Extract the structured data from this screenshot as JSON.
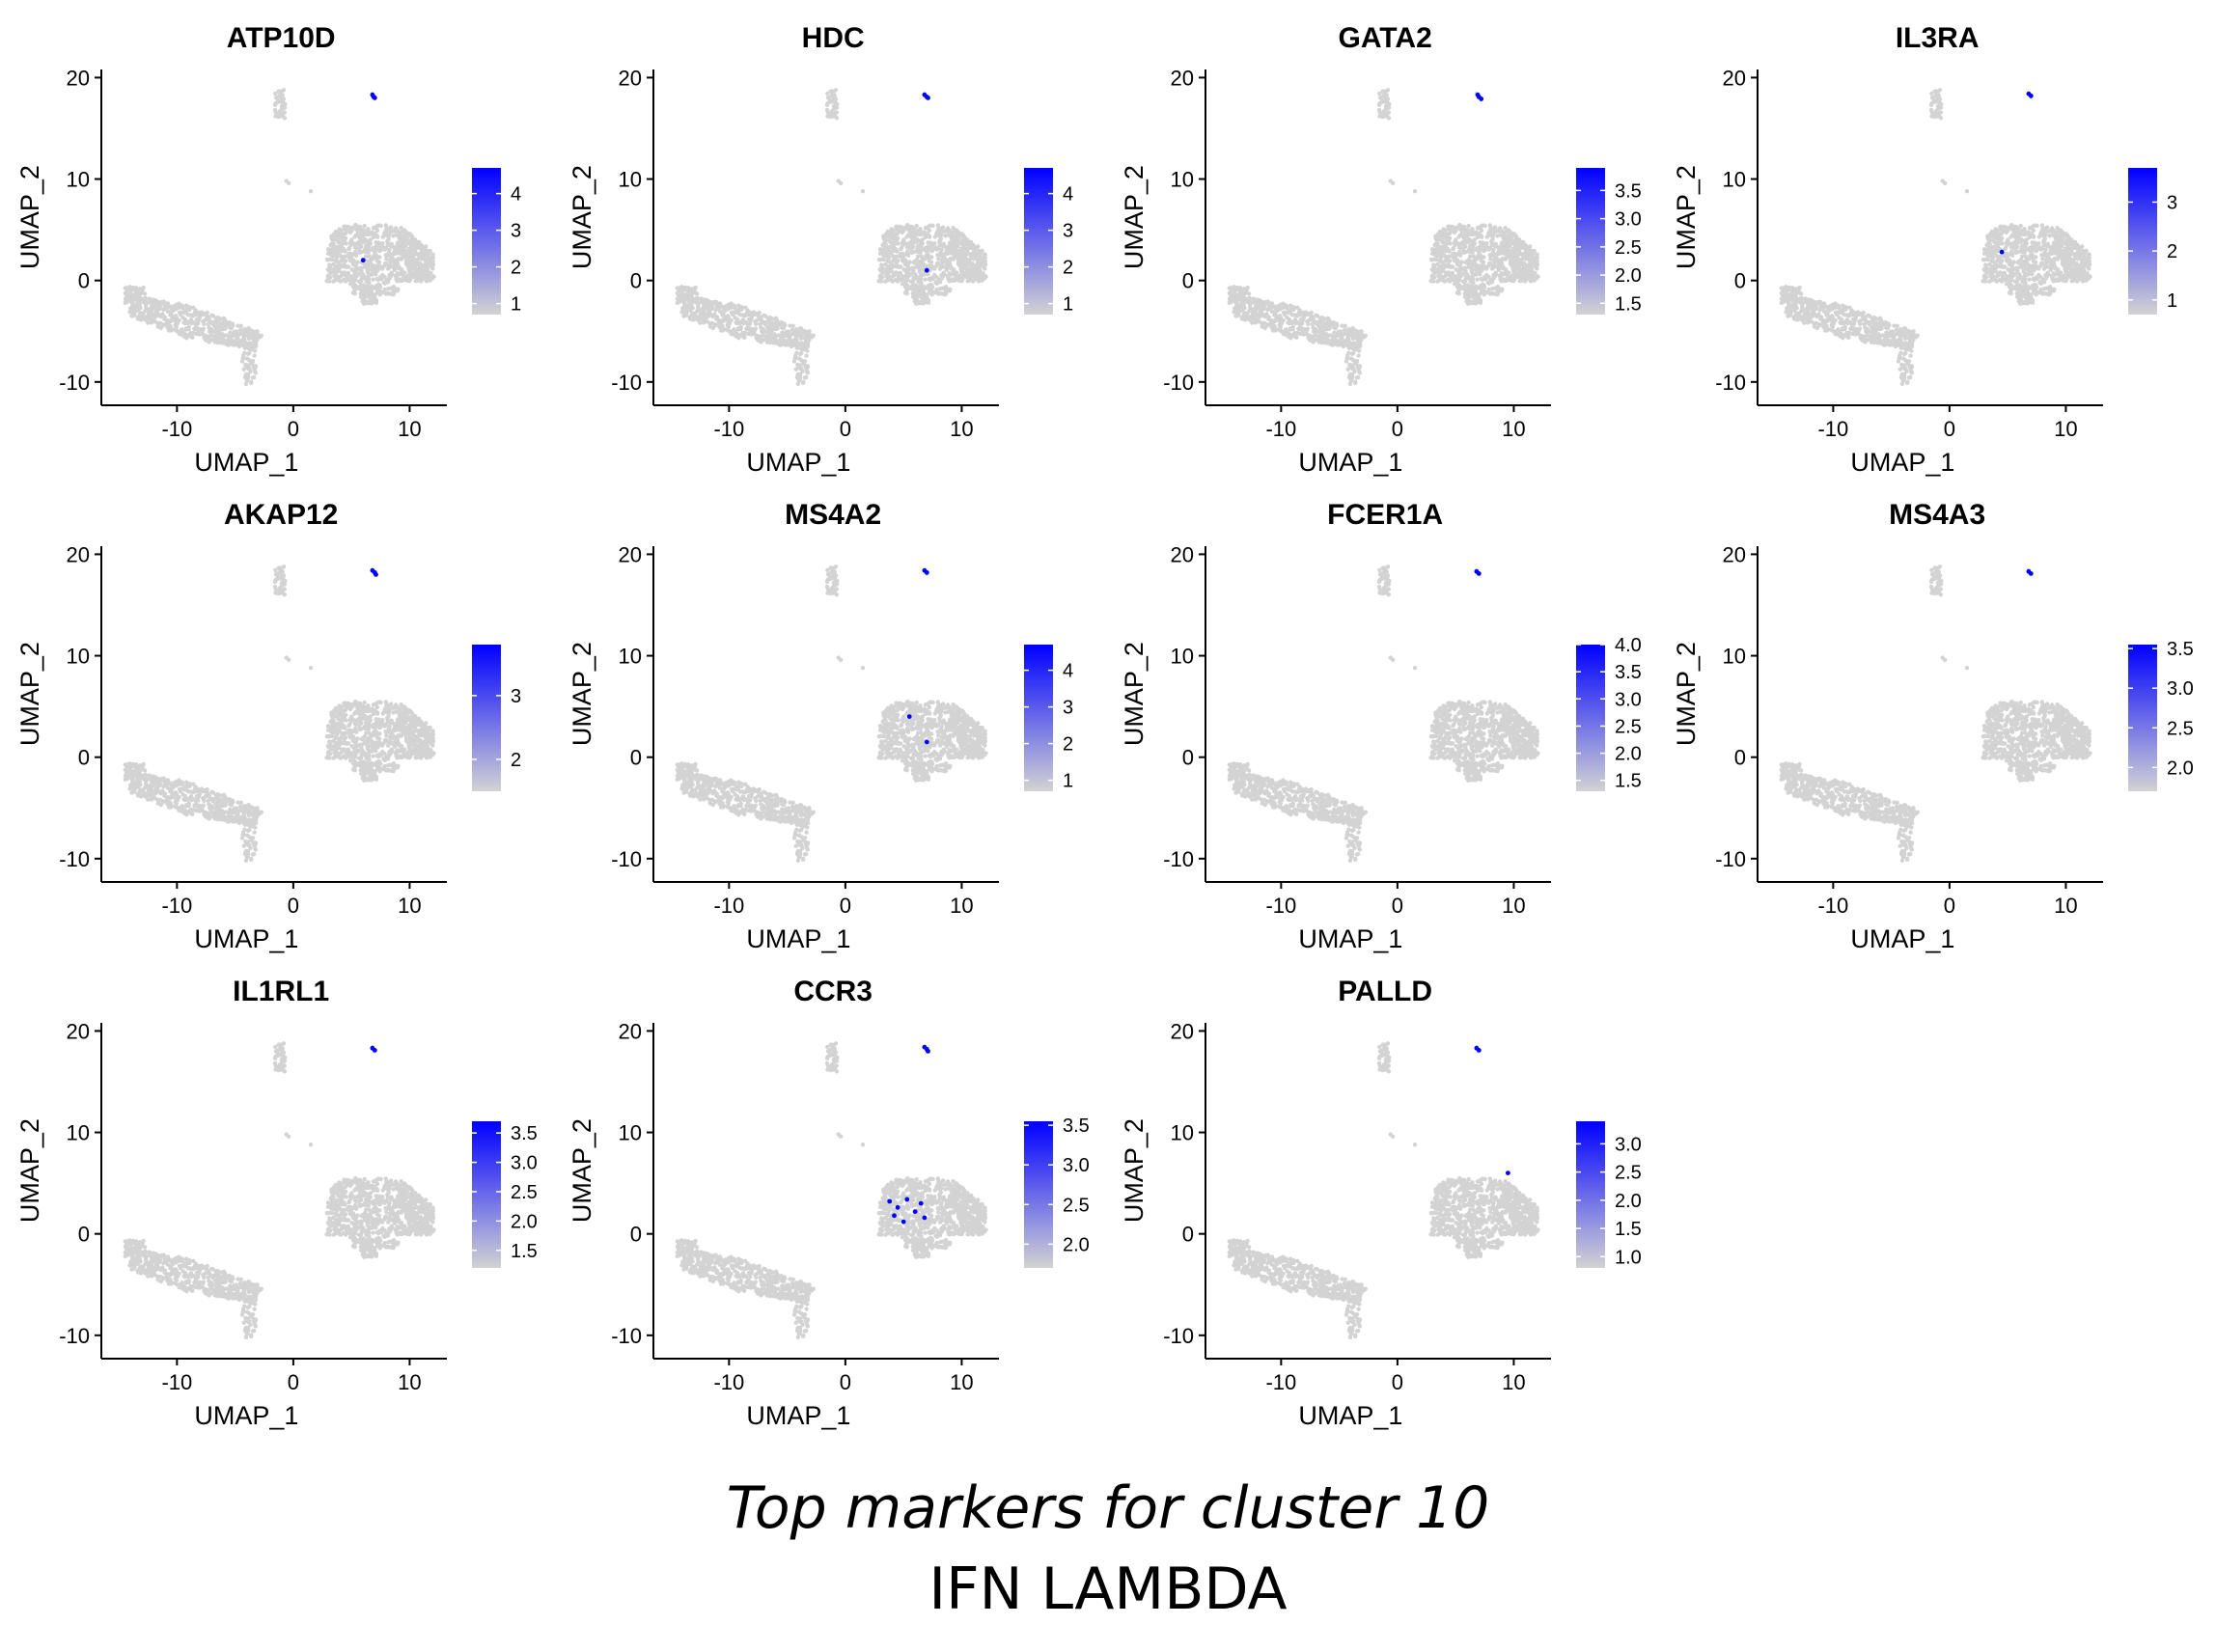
{
  "caption": {
    "line1": "Top markers for cluster 10",
    "line2": "IFN LAMBDA"
  },
  "colors": {
    "low": "#d3d3d3",
    "high": "#0000ff",
    "cells": "#d3d3d3"
  },
  "chart_data": [
    {
      "type": "scatter",
      "title": "ATP10D",
      "xlabel": "UMAP_1",
      "ylabel": "UMAP_2",
      "xticks": [
        "-10",
        "0",
        "10"
      ],
      "yticks": [
        "-10",
        "0",
        "10",
        "20"
      ],
      "xlim": [
        -16.5,
        13.2
      ],
      "ylim": [
        -12.3,
        20.8
      ],
      "legend": {
        "position": "right",
        "ticks": [
          "1",
          "2",
          "3",
          "4"
        ],
        "tick_values": [
          1,
          2,
          3,
          4
        ],
        "range": [
          0.7,
          4.7
        ]
      },
      "highlight_points": [
        [
          6.8,
          18.3
        ],
        [
          6.9,
          18.1
        ],
        [
          7.0,
          18.0
        ],
        [
          6.0,
          2.0
        ]
      ]
    },
    {
      "type": "scatter",
      "title": "HDC",
      "xlabel": "UMAP_1",
      "ylabel": "UMAP_2",
      "xticks": [
        "-10",
        "0",
        "10"
      ],
      "yticks": [
        "-10",
        "0",
        "10",
        "20"
      ],
      "xlim": [
        -16.5,
        13.2
      ],
      "ylim": [
        -12.3,
        20.8
      ],
      "legend": {
        "position": "right",
        "ticks": [
          "1",
          "2",
          "3",
          "4"
        ],
        "tick_values": [
          1,
          2,
          3,
          4
        ],
        "range": [
          0.7,
          4.7
        ]
      },
      "highlight_points": [
        [
          6.8,
          18.3
        ],
        [
          7.0,
          18.1
        ],
        [
          7.1,
          18.0
        ],
        [
          7.0,
          1.0
        ]
      ]
    },
    {
      "type": "scatter",
      "title": "GATA2",
      "xlabel": "UMAP_1",
      "ylabel": "UMAP_2",
      "xticks": [
        "-10",
        "0",
        "10"
      ],
      "yticks": [
        "-10",
        "0",
        "10",
        "20"
      ],
      "xlim": [
        -16.5,
        13.2
      ],
      "ylim": [
        -12.3,
        20.8
      ],
      "legend": {
        "position": "right",
        "ticks": [
          "1.5",
          "2.0",
          "2.5",
          "3.0",
          "3.5"
        ],
        "tick_values": [
          1.5,
          2.0,
          2.5,
          3.0,
          3.5
        ],
        "range": [
          1.3,
          3.9
        ]
      },
      "highlight_points": [
        [
          6.9,
          18.3
        ],
        [
          7.0,
          18.1
        ],
        [
          7.2,
          17.9
        ]
      ]
    },
    {
      "type": "scatter",
      "title": "IL3RA",
      "xlabel": "UMAP_1",
      "ylabel": "UMAP_2",
      "xticks": [
        "-10",
        "0",
        "10"
      ],
      "yticks": [
        "-10",
        "0",
        "10",
        "20"
      ],
      "xlim": [
        -16.5,
        13.2
      ],
      "ylim": [
        -12.3,
        20.8
      ],
      "legend": {
        "position": "right",
        "ticks": [
          "1",
          "2",
          "3"
        ],
        "tick_values": [
          1,
          2,
          3
        ],
        "range": [
          0.7,
          3.7
        ]
      },
      "highlight_points": [
        [
          6.8,
          18.4
        ],
        [
          7.0,
          18.2
        ],
        [
          4.5,
          2.8
        ]
      ]
    },
    {
      "type": "scatter",
      "title": "AKAP12",
      "xlabel": "UMAP_1",
      "ylabel": "UMAP_2",
      "xticks": [
        "-10",
        "0",
        "10"
      ],
      "yticks": [
        "-10",
        "0",
        "10",
        "20"
      ],
      "xlim": [
        -16.5,
        13.2
      ],
      "ylim": [
        -12.3,
        20.8
      ],
      "legend": {
        "position": "right",
        "ticks": [
          "2",
          "3"
        ],
        "tick_values": [
          2,
          3
        ],
        "range": [
          1.5,
          3.8
        ]
      },
      "highlight_points": [
        [
          6.8,
          18.4
        ],
        [
          7.0,
          18.2
        ],
        [
          7.1,
          18.0
        ]
      ]
    },
    {
      "type": "scatter",
      "title": "MS4A2",
      "xlabel": "UMAP_1",
      "ylabel": "UMAP_2",
      "xticks": [
        "-10",
        "0",
        "10"
      ],
      "yticks": [
        "-10",
        "0",
        "10",
        "20"
      ],
      "xlim": [
        -16.5,
        13.2
      ],
      "ylim": [
        -12.3,
        20.8
      ],
      "legend": {
        "position": "right",
        "ticks": [
          "1",
          "2",
          "3",
          "4"
        ],
        "tick_values": [
          1,
          2,
          3,
          4
        ],
        "range": [
          0.7,
          4.7
        ]
      },
      "highlight_points": [
        [
          6.8,
          18.4
        ],
        [
          7.0,
          18.2
        ],
        [
          5.5,
          4.0
        ],
        [
          7.0,
          1.5
        ]
      ]
    },
    {
      "type": "scatter",
      "title": "FCER1A",
      "xlabel": "UMAP_1",
      "ylabel": "UMAP_2",
      "xticks": [
        "-10",
        "0",
        "10"
      ],
      "yticks": [
        "-10",
        "0",
        "10",
        "20"
      ],
      "xlim": [
        -16.5,
        13.2
      ],
      "ylim": [
        -12.3,
        20.8
      ],
      "legend": {
        "position": "right",
        "ticks": [
          "1.5",
          "2.0",
          "2.5",
          "3.0",
          "3.5",
          "4.0"
        ],
        "tick_values": [
          1.5,
          2.0,
          2.5,
          3.0,
          3.5,
          4.0
        ],
        "range": [
          1.3,
          4.0
        ]
      },
      "highlight_points": [
        [
          6.8,
          18.3
        ],
        [
          7.0,
          18.1
        ]
      ]
    },
    {
      "type": "scatter",
      "title": "MS4A3",
      "xlabel": "UMAP_1",
      "ylabel": "UMAP_2",
      "xticks": [
        "-10",
        "0",
        "10"
      ],
      "yticks": [
        "-10",
        "0",
        "10",
        "20"
      ],
      "xlim": [
        -16.5,
        13.2
      ],
      "ylim": [
        -12.3,
        20.8
      ],
      "legend": {
        "position": "right",
        "ticks": [
          "2.0",
          "2.5",
          "3.0",
          "3.5"
        ],
        "tick_values": [
          2.0,
          2.5,
          3.0,
          3.5
        ],
        "range": [
          1.7,
          3.55
        ]
      },
      "highlight_points": [
        [
          6.8,
          18.3
        ],
        [
          7.0,
          18.1
        ]
      ]
    },
    {
      "type": "scatter",
      "title": "IL1RL1",
      "xlabel": "UMAP_1",
      "ylabel": "UMAP_2",
      "xticks": [
        "-10",
        "0",
        "10"
      ],
      "yticks": [
        "-10",
        "0",
        "10",
        "20"
      ],
      "xlim": [
        -16.5,
        13.2
      ],
      "ylim": [
        -12.3,
        20.8
      ],
      "legend": {
        "position": "right",
        "ticks": [
          "1.5",
          "2.0",
          "2.5",
          "3.0",
          "3.5"
        ],
        "tick_values": [
          1.5,
          2.0,
          2.5,
          3.0,
          3.5
        ],
        "range": [
          1.2,
          3.7
        ]
      },
      "highlight_points": [
        [
          6.8,
          18.3
        ],
        [
          7.0,
          18.1
        ]
      ]
    },
    {
      "type": "scatter",
      "title": "CCR3",
      "xlabel": "UMAP_1",
      "ylabel": "UMAP_2",
      "xticks": [
        "-10",
        "0",
        "10"
      ],
      "yticks": [
        "-10",
        "0",
        "10",
        "20"
      ],
      "xlim": [
        -16.5,
        13.2
      ],
      "ylim": [
        -12.3,
        20.8
      ],
      "legend": {
        "position": "right",
        "ticks": [
          "2.0",
          "2.5",
          "3.0",
          "3.5"
        ],
        "tick_values": [
          2.0,
          2.5,
          3.0,
          3.5
        ],
        "range": [
          1.7,
          3.55
        ]
      },
      "highlight_points": [
        [
          6.8,
          18.4
        ],
        [
          7.0,
          18.2
        ],
        [
          7.1,
          18.0
        ],
        [
          3.8,
          3.2
        ],
        [
          4.5,
          2.6
        ],
        [
          5.3,
          3.4
        ],
        [
          6.0,
          2.2
        ],
        [
          6.8,
          1.6
        ],
        [
          5.0,
          1.2
        ],
        [
          6.5,
          3.0
        ],
        [
          4.2,
          1.8
        ]
      ]
    },
    {
      "type": "scatter",
      "title": "PALLD",
      "xlabel": "UMAP_1",
      "ylabel": "UMAP_2",
      "xticks": [
        "-10",
        "0",
        "10"
      ],
      "yticks": [
        "-10",
        "0",
        "10",
        "20"
      ],
      "xlim": [
        -16.5,
        13.2
      ],
      "ylim": [
        -12.3,
        20.8
      ],
      "legend": {
        "position": "right",
        "ticks": [
          "1.0",
          "1.5",
          "2.0",
          "2.5",
          "3.0"
        ],
        "tick_values": [
          1.0,
          1.5,
          2.0,
          2.5,
          3.0
        ],
        "range": [
          0.8,
          3.4
        ]
      },
      "highlight_points": [
        [
          6.8,
          18.3
        ],
        [
          7.0,
          18.1
        ],
        [
          9.5,
          6.0
        ]
      ]
    }
  ]
}
